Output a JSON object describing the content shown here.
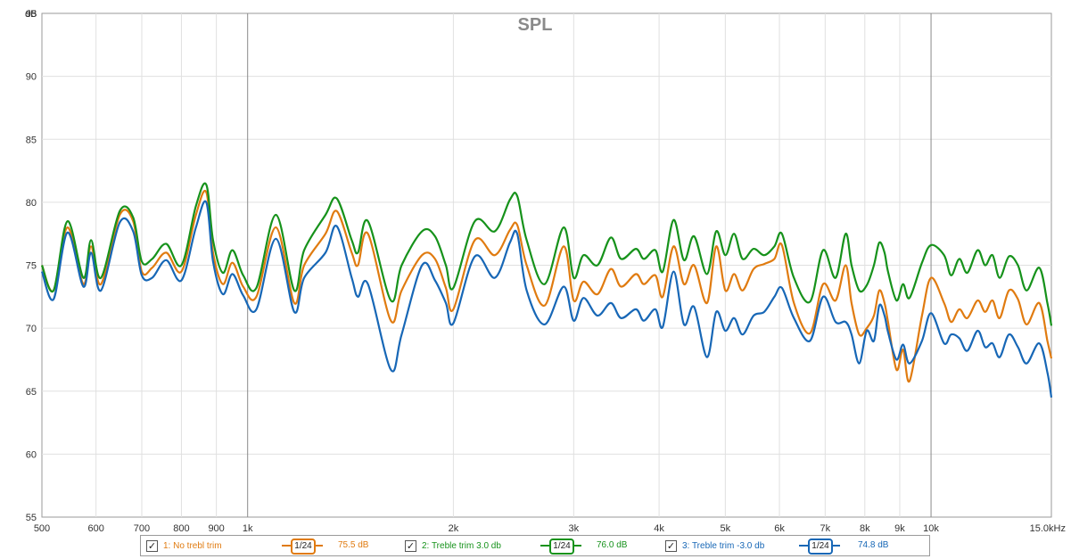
{
  "chart_data": {
    "type": "line",
    "title": "SPL",
    "ylabel": "dB",
    "x_scale": "log",
    "xlim": [
      500,
      15000
    ],
    "ylim": [
      55,
      95
    ],
    "y_ticks": [
      55,
      60,
      65,
      70,
      75,
      80,
      85,
      90,
      95
    ],
    "x_ticks": [
      {
        "value": 500,
        "label": "500"
      },
      {
        "value": 600,
        "label": "600"
      },
      {
        "value": 700,
        "label": "700"
      },
      {
        "value": 800,
        "label": "800"
      },
      {
        "value": 900,
        "label": "900"
      },
      {
        "value": 1000,
        "label": "1k"
      },
      {
        "value": 2000,
        "label": "2k"
      },
      {
        "value": 3000,
        "label": "3k"
      },
      {
        "value": 4000,
        "label": "4k"
      },
      {
        "value": 5000,
        "label": "5k"
      },
      {
        "value": 6000,
        "label": "6k"
      },
      {
        "value": 7000,
        "label": "7k"
      },
      {
        "value": 8000,
        "label": "8k"
      },
      {
        "value": 9000,
        "label": "9k"
      },
      {
        "value": 10000,
        "label": "10k"
      },
      {
        "value": 15000,
        "label": "15.0kHz"
      }
    ],
    "major_vlines": [
      1000,
      10000
    ],
    "grid": true,
    "series": [
      {
        "name": "1: No trebl trim",
        "color": "#e07b10",
        "smoothing": "1/24",
        "level": "75.5 dB",
        "points": [
          [
            500,
            75
          ],
          [
            520,
            73
          ],
          [
            545,
            78
          ],
          [
            575,
            73.5
          ],
          [
            590,
            76.5
          ],
          [
            610,
            73.5
          ],
          [
            650,
            79
          ],
          [
            680,
            78.5
          ],
          [
            700,
            74.5
          ],
          [
            725,
            74.8
          ],
          [
            760,
            76
          ],
          [
            800,
            74.5
          ],
          [
            840,
            79
          ],
          [
            870,
            80.8
          ],
          [
            890,
            76
          ],
          [
            920,
            73.5
          ],
          [
            950,
            75.2
          ],
          [
            985,
            73.3
          ],
          [
            1030,
            72.5
          ],
          [
            1100,
            78
          ],
          [
            1170,
            72
          ],
          [
            1210,
            75
          ],
          [
            1300,
            77.5
          ],
          [
            1350,
            79.3
          ],
          [
            1420,
            76
          ],
          [
            1450,
            75
          ],
          [
            1500,
            77.5
          ],
          [
            1620,
            70.6
          ],
          [
            1680,
            73
          ],
          [
            1800,
            75.8
          ],
          [
            1880,
            75.5
          ],
          [
            1950,
            73.2
          ],
          [
            2000,
            71.5
          ],
          [
            2150,
            77
          ],
          [
            2300,
            75.8
          ],
          [
            2420,
            77.8
          ],
          [
            2480,
            78.2
          ],
          [
            2560,
            75
          ],
          [
            2720,
            71.8
          ],
          [
            2900,
            76.5
          ],
          [
            3000,
            72.2
          ],
          [
            3100,
            73.7
          ],
          [
            3250,
            72.7
          ],
          [
            3400,
            74.7
          ],
          [
            3520,
            73.3
          ],
          [
            3700,
            74.3
          ],
          [
            3800,
            73.5
          ],
          [
            3950,
            74.2
          ],
          [
            4050,
            72.5
          ],
          [
            4200,
            76.5
          ],
          [
            4350,
            73.5
          ],
          [
            4500,
            75
          ],
          [
            4700,
            72
          ],
          [
            4850,
            76.5
          ],
          [
            5000,
            73
          ],
          [
            5150,
            74.3
          ],
          [
            5300,
            73
          ],
          [
            5500,
            74.7
          ],
          [
            5700,
            75.1
          ],
          [
            5900,
            75.5
          ],
          [
            6050,
            76.6
          ],
          [
            6300,
            72
          ],
          [
            6650,
            69.6
          ],
          [
            6950,
            73.5
          ],
          [
            7250,
            72.2
          ],
          [
            7500,
            75
          ],
          [
            7650,
            72
          ],
          [
            7850,
            69.5
          ],
          [
            8050,
            70
          ],
          [
            8250,
            71
          ],
          [
            8400,
            73
          ],
          [
            8550,
            72
          ],
          [
            8650,
            70.5
          ],
          [
            8900,
            66.7
          ],
          [
            9100,
            68.3
          ],
          [
            9300,
            65.8
          ],
          [
            9700,
            71
          ],
          [
            10000,
            74
          ],
          [
            10450,
            72
          ],
          [
            10700,
            70.5
          ],
          [
            11000,
            71.5
          ],
          [
            11300,
            70.8
          ],
          [
            11700,
            72.2
          ],
          [
            12000,
            71.3
          ],
          [
            12300,
            72.2
          ],
          [
            12600,
            70.8
          ],
          [
            13000,
            73
          ],
          [
            13400,
            72.3
          ],
          [
            13800,
            70.3
          ],
          [
            14400,
            72
          ],
          [
            14800,
            69
          ],
          [
            15000,
            67.6
          ]
        ]
      },
      {
        "name": "2: Treble trim 3.0 db",
        "color": "#16921b",
        "smoothing": "1/24",
        "level": "76.0 dB",
        "points": [
          [
            500,
            75
          ],
          [
            520,
            73
          ],
          [
            545,
            78.5
          ],
          [
            575,
            74
          ],
          [
            590,
            77
          ],
          [
            610,
            74
          ],
          [
            650,
            79.3
          ],
          [
            680,
            78.8
          ],
          [
            700,
            75.3
          ],
          [
            725,
            75.5
          ],
          [
            760,
            76.7
          ],
          [
            800,
            75
          ],
          [
            840,
            79.7
          ],
          [
            870,
            81.4
          ],
          [
            890,
            77
          ],
          [
            920,
            74.4
          ],
          [
            950,
            76.2
          ],
          [
            985,
            74.2
          ],
          [
            1030,
            73.2
          ],
          [
            1100,
            79
          ],
          [
            1170,
            73
          ],
          [
            1210,
            76.2
          ],
          [
            1300,
            79
          ],
          [
            1350,
            80.3
          ],
          [
            1420,
            77
          ],
          [
            1450,
            76
          ],
          [
            1500,
            78.5
          ],
          [
            1620,
            72.2
          ],
          [
            1680,
            75
          ],
          [
            1800,
            77.7
          ],
          [
            1880,
            77.3
          ],
          [
            1950,
            75
          ],
          [
            2000,
            73.2
          ],
          [
            2150,
            78.5
          ],
          [
            2300,
            77.7
          ],
          [
            2420,
            80.2
          ],
          [
            2480,
            80.5
          ],
          [
            2560,
            77
          ],
          [
            2720,
            73.5
          ],
          [
            2900,
            78
          ],
          [
            3000,
            74
          ],
          [
            3100,
            75.8
          ],
          [
            3250,
            75
          ],
          [
            3400,
            77.2
          ],
          [
            3520,
            75.5
          ],
          [
            3700,
            76.3
          ],
          [
            3800,
            75.5
          ],
          [
            3950,
            76.2
          ],
          [
            4050,
            74.5
          ],
          [
            4200,
            78.6
          ],
          [
            4350,
            75.4
          ],
          [
            4500,
            77.3
          ],
          [
            4700,
            74.3
          ],
          [
            4850,
            77.7
          ],
          [
            5000,
            75.8
          ],
          [
            5150,
            77.5
          ],
          [
            5300,
            75.5
          ],
          [
            5500,
            76.3
          ],
          [
            5700,
            75.8
          ],
          [
            5900,
            76.5
          ],
          [
            6050,
            77.5
          ],
          [
            6300,
            74
          ],
          [
            6650,
            72.1
          ],
          [
            6950,
            76.2
          ],
          [
            7250,
            74
          ],
          [
            7500,
            77.5
          ],
          [
            7650,
            75
          ],
          [
            7850,
            73
          ],
          [
            8050,
            73.4
          ],
          [
            8250,
            75
          ],
          [
            8400,
            76.8
          ],
          [
            8550,
            76
          ],
          [
            8650,
            74.5
          ],
          [
            8900,
            72.2
          ],
          [
            9100,
            73.5
          ],
          [
            9300,
            72.4
          ],
          [
            9700,
            75.2
          ],
          [
            10000,
            76.6
          ],
          [
            10450,
            75.8
          ],
          [
            10700,
            74.2
          ],
          [
            11000,
            75.5
          ],
          [
            11300,
            74.4
          ],
          [
            11700,
            76.2
          ],
          [
            12000,
            75
          ],
          [
            12300,
            75.8
          ],
          [
            12600,
            74
          ],
          [
            13000,
            75.7
          ],
          [
            13400,
            75
          ],
          [
            13800,
            73
          ],
          [
            14400,
            74.8
          ],
          [
            14800,
            72
          ],
          [
            15000,
            70.2
          ]
        ]
      },
      {
        "name": "3: Treble trim -3.0 db",
        "color": "#1767b6",
        "smoothing": "1/24",
        "level": "74.8 dB",
        "points": [
          [
            500,
            74.5
          ],
          [
            520,
            72.3
          ],
          [
            545,
            77.6
          ],
          [
            575,
            73.3
          ],
          [
            590,
            76
          ],
          [
            610,
            73
          ],
          [
            650,
            78.4
          ],
          [
            680,
            77.7
          ],
          [
            700,
            74.2
          ],
          [
            725,
            74
          ],
          [
            760,
            75.4
          ],
          [
            800,
            73.8
          ],
          [
            840,
            78
          ],
          [
            870,
            80
          ],
          [
            890,
            75.3
          ],
          [
            920,
            72.7
          ],
          [
            950,
            74.3
          ],
          [
            985,
            72.6
          ],
          [
            1030,
            71.5
          ],
          [
            1100,
            77.1
          ],
          [
            1170,
            71.3
          ],
          [
            1210,
            74
          ],
          [
            1300,
            76
          ],
          [
            1350,
            78.1
          ],
          [
            1420,
            74
          ],
          [
            1450,
            72.5
          ],
          [
            1500,
            73.5
          ],
          [
            1620,
            66.7
          ],
          [
            1680,
            69.5
          ],
          [
            1800,
            75
          ],
          [
            1880,
            73.8
          ],
          [
            1950,
            72
          ],
          [
            2000,
            70.4
          ],
          [
            2150,
            75.7
          ],
          [
            2300,
            74
          ],
          [
            2420,
            76.8
          ],
          [
            2480,
            77.5
          ],
          [
            2560,
            73
          ],
          [
            2720,
            70.3
          ],
          [
            2900,
            73.3
          ],
          [
            3000,
            70.6
          ],
          [
            3100,
            72.4
          ],
          [
            3250,
            71
          ],
          [
            3400,
            72
          ],
          [
            3520,
            70.8
          ],
          [
            3700,
            71.5
          ],
          [
            3800,
            70.6
          ],
          [
            3950,
            71.5
          ],
          [
            4050,
            70.1
          ],
          [
            4200,
            74.5
          ],
          [
            4350,
            70.3
          ],
          [
            4500,
            71.7
          ],
          [
            4700,
            67.7
          ],
          [
            4850,
            71.3
          ],
          [
            5000,
            69.8
          ],
          [
            5150,
            70.8
          ],
          [
            5300,
            69.5
          ],
          [
            5500,
            71
          ],
          [
            5700,
            71.3
          ],
          [
            5900,
            72.5
          ],
          [
            6050,
            73.2
          ],
          [
            6300,
            70.8
          ],
          [
            6650,
            69
          ],
          [
            6950,
            72.5
          ],
          [
            7250,
            70.5
          ],
          [
            7500,
            70.5
          ],
          [
            7650,
            69.5
          ],
          [
            7850,
            67.2
          ],
          [
            8050,
            69.8
          ],
          [
            8250,
            69
          ],
          [
            8400,
            71.8
          ],
          [
            8550,
            71
          ],
          [
            8650,
            69.7
          ],
          [
            8900,
            67.5
          ],
          [
            9100,
            68.7
          ],
          [
            9300,
            67.2
          ],
          [
            9700,
            69
          ],
          [
            10000,
            71.2
          ],
          [
            10450,
            68.8
          ],
          [
            10700,
            69.5
          ],
          [
            11000,
            69.2
          ],
          [
            11300,
            68.2
          ],
          [
            11700,
            69.8
          ],
          [
            12000,
            68.5
          ],
          [
            12300,
            68.8
          ],
          [
            12600,
            67.7
          ],
          [
            13000,
            69.5
          ],
          [
            13400,
            68.5
          ],
          [
            13800,
            67.2
          ],
          [
            14400,
            68.8
          ],
          [
            14800,
            66.5
          ],
          [
            15000,
            64.5
          ]
        ]
      }
    ]
  },
  "legend": {
    "items": [
      {
        "check": "✓",
        "label": "1: No trebl trim",
        "smoothing": "1/24",
        "level": "75.5 dB",
        "color": "#e07b10"
      },
      {
        "check": "✓",
        "label": "2: Treble trim 3.0 db",
        "smoothing": "1/24",
        "level": "76.0 dB",
        "color": "#16921b"
      },
      {
        "check": "✓",
        "label": "3: Treble trim -3.0 db",
        "smoothing": "1/24",
        "level": "74.8 dB",
        "color": "#1767b6"
      }
    ]
  }
}
